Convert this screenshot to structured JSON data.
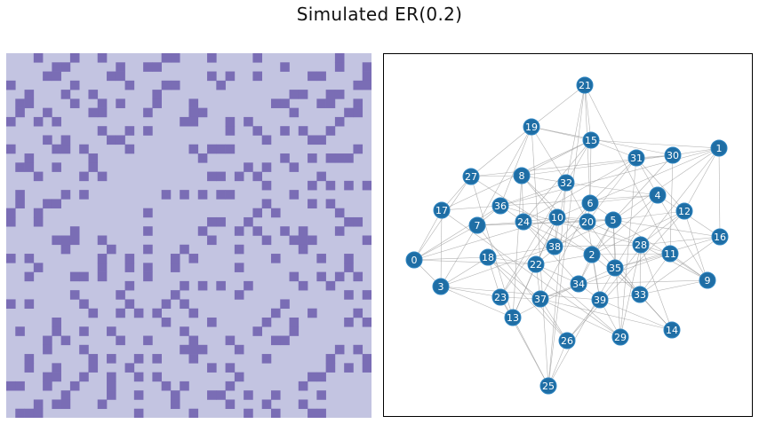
{
  "title": "Simulated ER(0.2)",
  "colors": {
    "matrix_empty": "#c3c4e1",
    "matrix_edge": "#7a6db5",
    "node": "#1f6ea5",
    "node_border": "#2f86c2",
    "edge": "#9a9a9a",
    "label": "#ffffff"
  },
  "adjacency": {
    "size": 40,
    "edges": [
      [
        0,
        3
      ],
      [
        0,
        7
      ],
      [
        0,
        18
      ],
      [
        0,
        22
      ],
      [
        0,
        10
      ],
      [
        0,
        36
      ],
      [
        1,
        12
      ],
      [
        1,
        16
      ],
      [
        1,
        6
      ],
      [
        1,
        5
      ],
      [
        1,
        15
      ],
      [
        1,
        39
      ],
      [
        2,
        4
      ],
      [
        2,
        11
      ],
      [
        2,
        22
      ],
      [
        2,
        33
      ],
      [
        2,
        39
      ],
      [
        2,
        27
      ],
      [
        2,
        12
      ],
      [
        2,
        24
      ],
      [
        3,
        7
      ],
      [
        3,
        23
      ],
      [
        3,
        13
      ],
      [
        3,
        18
      ],
      [
        3,
        38
      ],
      [
        4,
        9
      ],
      [
        4,
        31
      ],
      [
        4,
        32
      ],
      [
        4,
        35
      ],
      [
        4,
        36
      ],
      [
        5,
        16
      ],
      [
        5,
        30
      ],
      [
        5,
        38
      ],
      [
        5,
        7
      ],
      [
        5,
        34
      ],
      [
        5,
        12
      ],
      [
        5,
        29
      ],
      [
        6,
        15
      ],
      [
        6,
        21
      ],
      [
        6,
        20
      ],
      [
        6,
        37
      ],
      [
        6,
        10
      ],
      [
        6,
        9
      ],
      [
        7,
        24
      ],
      [
        7,
        36
      ],
      [
        7,
        26
      ],
      [
        7,
        19
      ],
      [
        7,
        20
      ],
      [
        8,
        10
      ],
      [
        8,
        32
      ],
      [
        8,
        27
      ],
      [
        8,
        30
      ],
      [
        8,
        35
      ],
      [
        9,
        11
      ],
      [
        9,
        28
      ],
      [
        9,
        34
      ],
      [
        9,
        33
      ],
      [
        10,
        24
      ],
      [
        10,
        20
      ],
      [
        10,
        23
      ],
      [
        10,
        38
      ],
      [
        10,
        13
      ],
      [
        11,
        30
      ],
      [
        11,
        21
      ],
      [
        11,
        36
      ],
      [
        11,
        37
      ],
      [
        12,
        28
      ],
      [
        12,
        31
      ],
      [
        12,
        26
      ],
      [
        13,
        22
      ],
      [
        13,
        25
      ],
      [
        13,
        27
      ],
      [
        13,
        34
      ],
      [
        14,
        33
      ],
      [
        14,
        28
      ],
      [
        14,
        39
      ],
      [
        14,
        35
      ],
      [
        15,
        19
      ],
      [
        15,
        31
      ],
      [
        15,
        24
      ],
      [
        15,
        23
      ],
      [
        15,
        17
      ],
      [
        16,
        28
      ],
      [
        16,
        35
      ],
      [
        16,
        33
      ],
      [
        17,
        36
      ],
      [
        17,
        27
      ],
      [
        17,
        29
      ],
      [
        17,
        3
      ],
      [
        18,
        22
      ],
      [
        18,
        23
      ],
      [
        18,
        26
      ],
      [
        18,
        38
      ],
      [
        19,
        27
      ],
      [
        19,
        32
      ],
      [
        19,
        25
      ],
      [
        19,
        36
      ],
      [
        19,
        30
      ],
      [
        20,
        32
      ],
      [
        20,
        39
      ],
      [
        20,
        28
      ],
      [
        20,
        22
      ],
      [
        21,
        32
      ],
      [
        21,
        25
      ],
      [
        21,
        15
      ],
      [
        22,
        34
      ],
      [
        22,
        37
      ],
      [
        22,
        29
      ],
      [
        23,
        37
      ],
      [
        23,
        25
      ],
      [
        23,
        13
      ],
      [
        24,
        38
      ],
      [
        24,
        36
      ],
      [
        24,
        34
      ],
      [
        25,
        26
      ],
      [
        25,
        35
      ],
      [
        25,
        32
      ],
      [
        26,
        39
      ],
      [
        26,
        37
      ],
      [
        26,
        12
      ],
      [
        27,
        30
      ],
      [
        27,
        0
      ],
      [
        28,
        29
      ],
      [
        28,
        33
      ],
      [
        28,
        38
      ],
      [
        29,
        31
      ],
      [
        29,
        39
      ],
      [
        29,
        37
      ],
      [
        30,
        31
      ],
      [
        30,
        1
      ],
      [
        31,
        6
      ],
      [
        31,
        20
      ],
      [
        32,
        38
      ],
      [
        32,
        36
      ],
      [
        32,
        4
      ],
      [
        33,
        39
      ],
      [
        33,
        35
      ],
      [
        33,
        11
      ],
      [
        34,
        39
      ],
      [
        34,
        35
      ],
      [
        34,
        2
      ],
      [
        35,
        11
      ],
      [
        35,
        5
      ],
      [
        36,
        1
      ],
      [
        37,
        34
      ],
      [
        37,
        14
      ],
      [
        39,
        3
      ],
      [
        24,
        8
      ],
      [
        10,
        5
      ],
      [
        20,
        5
      ],
      [
        6,
        4
      ],
      [
        16,
        4
      ],
      [
        9,
        12
      ],
      [
        18,
        37
      ],
      [
        0,
        17
      ],
      [
        21,
        19
      ],
      [
        8,
        13
      ],
      [
        2,
        5
      ],
      [
        6,
        38
      ],
      [
        10,
        22
      ],
      [
        15,
        8
      ],
      [
        33,
        20
      ],
      [
        31,
        24
      ]
    ]
  },
  "graph": {
    "nodes": [
      {
        "id": "0",
        "x": 0.0,
        "y": 0.0
      },
      {
        "id": "1",
        "x": 0.0,
        "y": 0.0
      },
      {
        "id": "2",
        "x": 0.0,
        "y": 0.0
      },
      {
        "id": "3",
        "x": 0.0,
        "y": 0.0
      },
      {
        "id": "4",
        "x": 0.0,
        "y": 0.0
      },
      {
        "id": "5",
        "x": 0.0,
        "y": 0.0
      },
      {
        "id": "6",
        "x": 0.0,
        "y": 0.0
      },
      {
        "id": "7",
        "x": 0.0,
        "y": 0.0
      },
      {
        "id": "8",
        "x": 0.0,
        "y": 0.0
      },
      {
        "id": "9",
        "x": 0.0,
        "y": 0.0
      },
      {
        "id": "10",
        "x": 0.0,
        "y": 0.0
      },
      {
        "id": "11",
        "x": 0.0,
        "y": 0.0
      },
      {
        "id": "12",
        "x": 0.0,
        "y": 0.0
      },
      {
        "id": "13",
        "x": 0.0,
        "y": 0.0
      },
      {
        "id": "14",
        "x": 0.0,
        "y": 0.0
      },
      {
        "id": "15",
        "x": 0.0,
        "y": 0.0
      },
      {
        "id": "16",
        "x": 0.0,
        "y": 0.0
      },
      {
        "id": "17",
        "x": 0.0,
        "y": 0.0
      },
      {
        "id": "18",
        "x": 0.0,
        "y": 0.0
      },
      {
        "id": "19",
        "x": 0.0,
        "y": 0.0
      },
      {
        "id": "20",
        "x": 0.0,
        "y": 0.0
      },
      {
        "id": "21",
        "x": 0.0,
        "y": 0.0
      },
      {
        "id": "22",
        "x": 0.0,
        "y": 0.0
      },
      {
        "id": "23",
        "x": 0.0,
        "y": 0.0
      },
      {
        "id": "24",
        "x": 0.0,
        "y": 0.0
      },
      {
        "id": "25",
        "x": 0.0,
        "y": 0.0
      },
      {
        "id": "26",
        "x": 0.0,
        "y": 0.0
      },
      {
        "id": "27",
        "x": 0.0,
        "y": 0.0
      },
      {
        "id": "28",
        "x": 0.0,
        "y": 0.0
      },
      {
        "id": "29",
        "x": 0.0,
        "y": 0.0
      },
      {
        "id": "30",
        "x": 0.0,
        "y": 0.0
      },
      {
        "id": "31",
        "x": 0.0,
        "y": 0.0
      },
      {
        "id": "32",
        "x": 0.0,
        "y": 0.0
      },
      {
        "id": "33",
        "x": 0.0,
        "y": 0.0
      },
      {
        "id": "34",
        "x": 0.0,
        "y": 0.0
      },
      {
        "id": "35",
        "x": 0.0,
        "y": 0.0
      },
      {
        "id": "36",
        "x": 0.0,
        "y": 0.0
      },
      {
        "id": "37",
        "x": 0.0,
        "y": 0.0
      },
      {
        "id": "38",
        "x": 0.0,
        "y": 0.0
      },
      {
        "id": "39",
        "x": 0.0,
        "y": 0.0
      }
    ]
  }
}
